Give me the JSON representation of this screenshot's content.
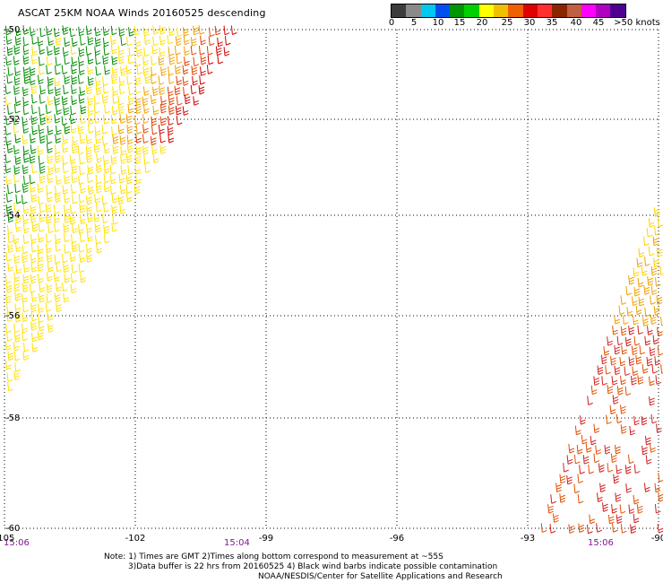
{
  "title": "ASCAT 25KM NOAA Winds 20160525 descending",
  "colorbar": {
    "labels": [
      "0",
      "5",
      "10",
      "15",
      "20",
      "25",
      "30",
      "35",
      "40",
      "45",
      ">50 knots"
    ],
    "colors": [
      "#3c3c3c",
      "#8a8a8a",
      "#00c8f0",
      "#0050f0",
      "#009600",
      "#00d000",
      "#ffff00",
      "#f0c000",
      "#f06000",
      "#e00000",
      "#ff3030",
      "#8b2500",
      "#c06040",
      "#ff00ff",
      "#b000c0",
      "#500090"
    ]
  },
  "axes": {
    "lat_labels": [
      "-50",
      "-52",
      "-54",
      "-56",
      "-58",
      "-60"
    ],
    "lon_labels": [
      "-105",
      "-102",
      "-99",
      "-96",
      "-93",
      "-90"
    ]
  },
  "times": [
    "15:06",
    "15:04",
    "15:06"
  ],
  "notes": {
    "line1": "Note: 1) Times are GMT 2)Times along bottom correspond to measurement at ~55S",
    "line2": "3)Data buffer is 22 hrs from 20160525 4) Black wind barbs indicate possible contamination",
    "line3": "NOAA/NESDIS/Center for Satellite Applications and Research"
  },
  "swaths": {
    "left": {
      "colors": [
        "#008c00",
        "#ffe000",
        "#f0a000",
        "#e04000",
        "#d00000"
      ]
    },
    "right": {
      "colors": [
        "#ffd000",
        "#f0a000",
        "#e05000",
        "#d02020"
      ]
    }
  }
}
